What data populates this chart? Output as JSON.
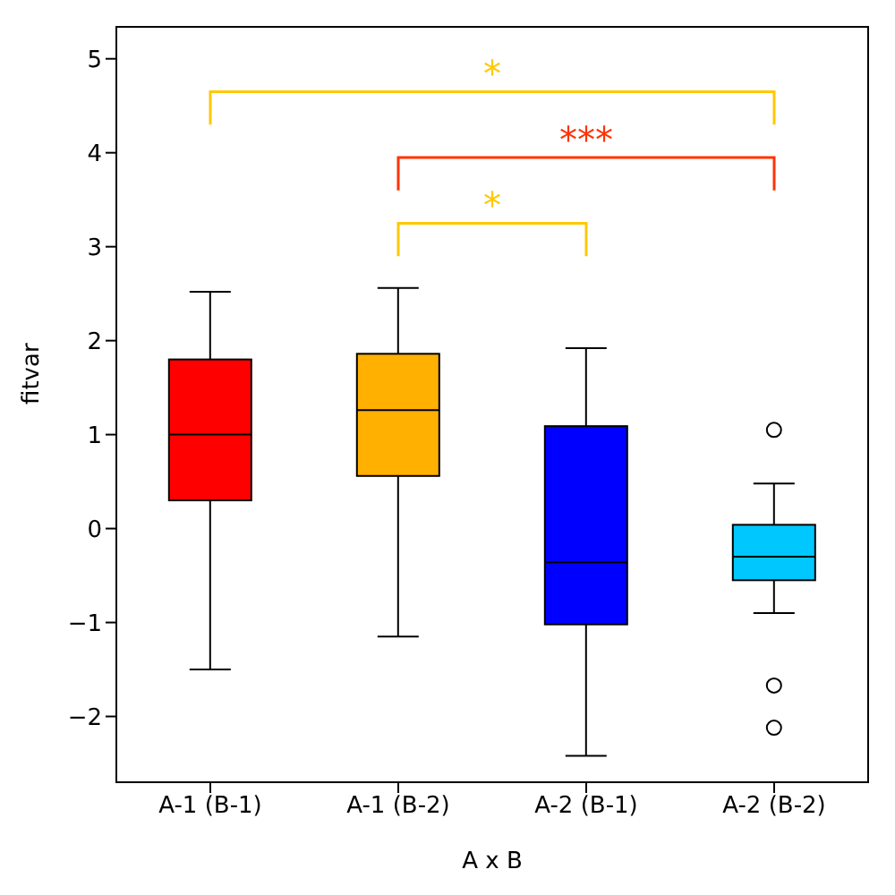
{
  "chart_data": {
    "type": "box",
    "xlabel": "A x B",
    "ylabel": "fitvar",
    "categories": [
      "A-1 (B-1)",
      "A-1 (B-2)",
      "A-2 (B-1)",
      "A-2 (B-2)"
    ],
    "colors": [
      "#ff0000",
      "#ffb000",
      "#0000ff",
      "#00c8ff"
    ],
    "boxes": [
      {
        "low": -1.5,
        "q1": 0.3,
        "median": 1.0,
        "q3": 1.8,
        "high": 2.52
      },
      {
        "low": -1.15,
        "q1": 0.56,
        "median": 1.26,
        "q3": 1.86,
        "high": 2.56
      },
      {
        "low": -2.42,
        "q1": -1.02,
        "median": -0.36,
        "q3": 1.09,
        "high": 1.92
      },
      {
        "low": -0.9,
        "q1": -0.55,
        "median": -0.3,
        "q3": 0.04,
        "high": 0.48,
        "outliers": [
          1.05,
          -1.67,
          -2.12
        ]
      }
    ],
    "ylim": [
      -2.7,
      5.34
    ],
    "yticks": [
      {
        "value": -2,
        "label": "−2"
      },
      {
        "value": -1,
        "label": "−1"
      },
      0,
      1,
      2,
      3,
      4,
      5
    ],
    "annotations": [
      "*",
      "***",
      "*"
    ]
  }
}
